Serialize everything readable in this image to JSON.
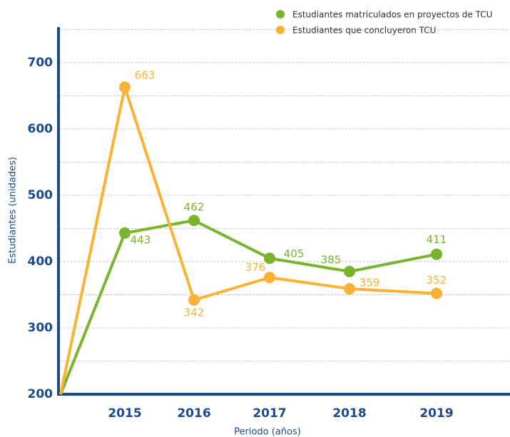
{
  "chart_data": {
    "type": "line",
    "x_label": "Periodo (años)",
    "y_label": "Estudiantes (unidades)",
    "categories": [
      null,
      "2015",
      "2016",
      "2017",
      "2018",
      "2019"
    ],
    "series": [
      {
        "name": "Estudiantes matriculados en proyectos de TCU",
        "color": "#7ab32e",
        "values": [
          200,
          443,
          462,
          405,
          385,
          411
        ]
      },
      {
        "name": "Estudiantes que concluyeron TCU",
        "color": "#f9b233",
        "values": [
          200,
          663,
          342,
          376,
          359,
          352
        ]
      }
    ],
    "ylim": [
      200,
      760
    ],
    "yticks": [
      200,
      300,
      400,
      500,
      600,
      700
    ],
    "minor_grid": [
      250,
      350,
      450,
      550,
      650,
      750
    ],
    "grid": true
  }
}
